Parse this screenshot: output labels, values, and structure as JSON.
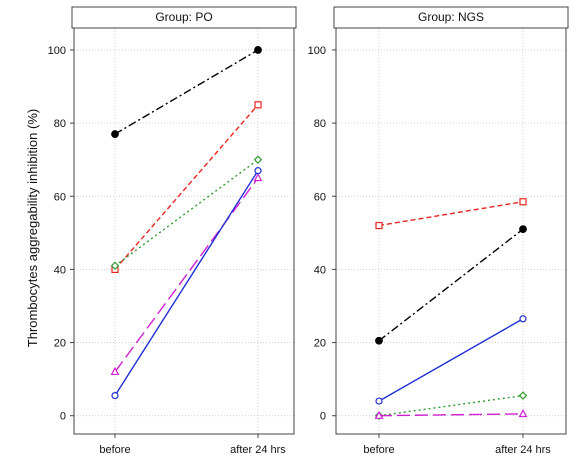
{
  "ylabel": "Thrombocytes aggregability inhibition (%)",
  "colors": {
    "background": "#ffffff",
    "frame": "#444444",
    "grid": "#c8c8c8",
    "text": "#111111"
  },
  "chart_data": [
    {
      "type": "line",
      "title": "Group: PO",
      "categories": [
        "before",
        "after 24 hrs"
      ],
      "ylim": [
        -5,
        106
      ],
      "yticks": [
        0,
        20,
        40,
        60,
        80,
        100
      ],
      "grid": true,
      "series": [
        {
          "values": [
            77,
            100
          ],
          "color": "#000000",
          "dash": "dashdot",
          "marker": "filled-circle"
        },
        {
          "values": [
            40,
            85
          ],
          "color": "#e8251e",
          "dash": "dashed",
          "marker": "square"
        },
        {
          "values": [
            41,
            70
          ],
          "color": "#2f9a2f",
          "dash": "dotted",
          "marker": "diamond"
        },
        {
          "values": [
            12,
            65
          ],
          "color": "#d21fd2",
          "dash": "longdash",
          "marker": "triangle"
        },
        {
          "values": [
            5.5,
            67
          ],
          "color": "#1f2fd6",
          "dash": "solid",
          "marker": "circle"
        }
      ]
    },
    {
      "type": "line",
      "title": "Group: NGS",
      "categories": [
        "before",
        "after 24 hrs"
      ],
      "ylim": [
        -5,
        106
      ],
      "yticks": [
        0,
        20,
        40,
        60,
        80,
        100
      ],
      "grid": true,
      "series": [
        {
          "values": [
            20.5,
            51
          ],
          "color": "#000000",
          "dash": "dashdot",
          "marker": "filled-circle"
        },
        {
          "values": [
            52,
            58.5
          ],
          "color": "#e8251e",
          "dash": "dashed",
          "marker": "square"
        },
        {
          "values": [
            0,
            5.5
          ],
          "color": "#2f9a2f",
          "dash": "dotted",
          "marker": "diamond"
        },
        {
          "values": [
            0,
            0.5
          ],
          "color": "#d21fd2",
          "dash": "longdash",
          "marker": "triangle"
        },
        {
          "values": [
            4,
            26.5
          ],
          "color": "#1f2fd6",
          "dash": "solid",
          "marker": "circle"
        }
      ]
    }
  ]
}
